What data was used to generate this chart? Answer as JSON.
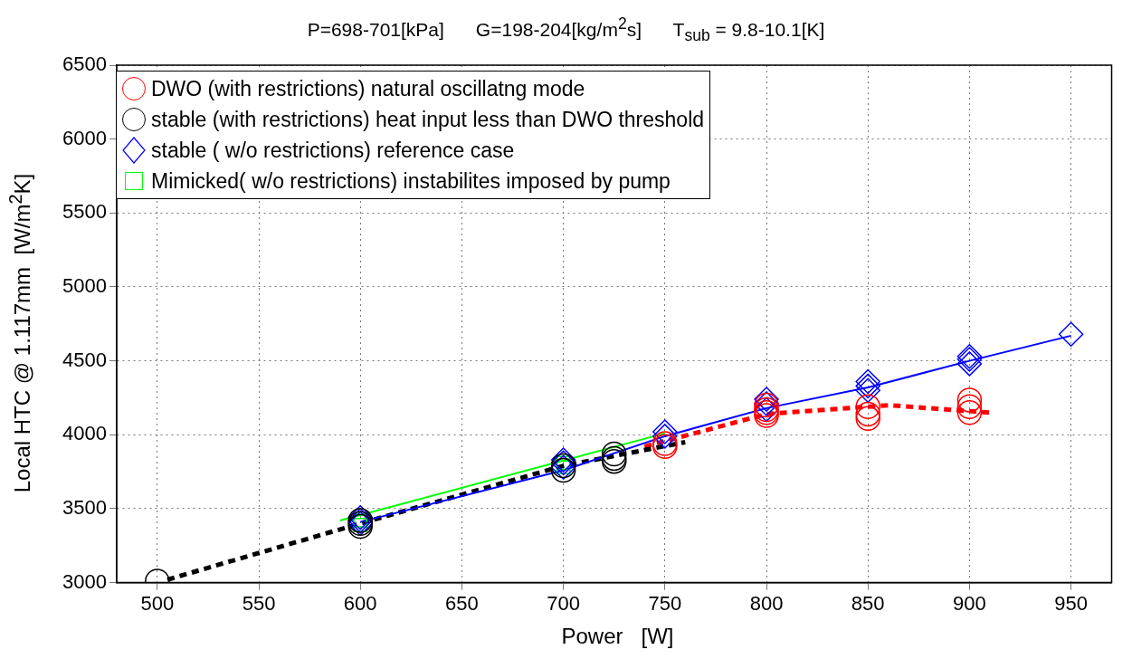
{
  "chart_data": {
    "type": "scatter",
    "title": "P=698-701[kPa]      G=198-204[kg/m$^{2}$s]      T$_{sub}$ = 9.8-10.1[K]",
    "xlabel": "Power   [W]",
    "ylabel": "Local HTC @ 1.117mm  [W/m$^{2}$K]",
    "xlim": [
      480,
      970
    ],
    "xticks": [
      500,
      550,
      600,
      650,
      700,
      750,
      800,
      850,
      900,
      950
    ],
    "ylim": [
      3000,
      6500
    ],
    "yticks": [
      3000,
      3500,
      4000,
      4500,
      5000,
      5500,
      6000,
      6500
    ],
    "grid": true,
    "legend": "top left",
    "series": [
      {
        "name": "DWO (with restrictions) natural oscillatng mode",
        "marker": "circle",
        "color": "#ff0000",
        "x": [
          750,
          750,
          800,
          800,
          800,
          800,
          850,
          850,
          850,
          900,
          900,
          900
        ],
        "values": [
          3940,
          3920,
          4130,
          4150,
          4170,
          4200,
          4190,
          4140,
          4110,
          4235,
          4190,
          4150
        ]
      },
      {
        "name": "stable (with restrictions) heat input less than DWO threshold",
        "marker": "circle",
        "color": "#000000",
        "x": [
          500,
          600,
          600,
          600,
          700,
          700,
          725,
          725,
          725
        ],
        "values": [
          3010,
          3380,
          3400,
          3420,
          3760,
          3790,
          3820,
          3840,
          3870
        ]
      },
      {
        "name": "stable ( w/o restrictions) reference case",
        "marker": "diamond",
        "color": "#0000ff",
        "x": [
          600,
          600,
          600,
          700,
          700,
          700,
          750,
          750,
          800,
          800,
          800,
          850,
          850,
          850,
          900,
          900,
          900,
          950
        ],
        "values": [
          3400,
          3420,
          3440,
          3780,
          3810,
          3830,
          3990,
          4020,
          4170,
          4210,
          4240,
          4300,
          4330,
          4360,
          4480,
          4510,
          4530,
          4680
        ]
      },
      {
        "name": "Mimicked( w/o restrictions) instabilites imposed by pump",
        "marker": "square",
        "color": "#00ff00",
        "x": [
          600,
          600,
          700,
          700
        ],
        "values": [
          3390,
          3420,
          3780,
          3810
        ]
      },
      {
        "type": "line",
        "marker": "none",
        "line_style": "solid",
        "color": "#0000ff",
        "x": [
          600,
          700,
          750,
          800,
          850,
          900,
          950
        ],
        "values": [
          3410,
          3760,
          3990,
          4180,
          4320,
          4500,
          4670
        ]
      },
      {
        "type": "line",
        "marker": "none",
        "line_style": "solid",
        "color": "#00ff00",
        "x": [
          590,
          750
        ],
        "values": [
          3420,
          4010
        ]
      },
      {
        "type": "line",
        "marker": "none",
        "line_style": "dashed",
        "color": "#000000",
        "x": [
          505,
          600,
          700,
          760
        ],
        "values": [
          3020,
          3400,
          3790,
          3950
        ]
      },
      {
        "type": "line",
        "marker": "none",
        "line_style": "dashed",
        "color": "#ff0000",
        "x": [
          740,
          800,
          860,
          910
        ],
        "values": [
          3920,
          4140,
          4200,
          4150
        ]
      }
    ]
  }
}
